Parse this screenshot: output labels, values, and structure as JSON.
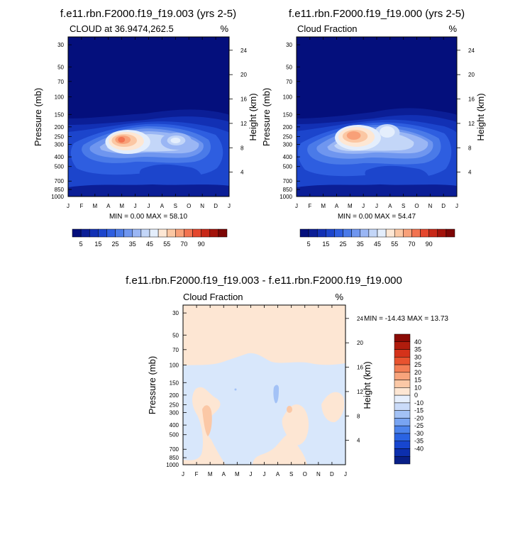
{
  "palettes": {
    "abs": [
      "#040f7c",
      "#0b1e96",
      "#1230b4",
      "#1c45cc",
      "#2e5ee0",
      "#4a7ae8",
      "#6f96ef",
      "#9ab6f4",
      "#c3d6f8",
      "#e4eefc",
      "#fde7d4",
      "#fbc7a3",
      "#f8a078",
      "#f27350",
      "#e4472d",
      "#c72818",
      "#a3130b",
      "#7d0605"
    ],
    "diff": [
      "#081f87",
      "#0c2fae",
      "#1746cf",
      "#2a63e3",
      "#4c83ec",
      "#78a4f2",
      "#a3c2f6",
      "#cadbf9",
      "#e6effd",
      "#fde6d3",
      "#fbc8a6",
      "#f8a47c",
      "#f37e55",
      "#e8532f",
      "#d5321a",
      "#b01c0d",
      "#8a0a05"
    ]
  },
  "charts": [
    {
      "title": "f.e11.rbn.F2000.f19_f19.003 (yrs 2-5)",
      "left_string": "CLOUD at 36.9474,262.5",
      "right_string": "%",
      "ylabel": "Pressure (mb)",
      "ylabel_right": "Height (km)",
      "stats": "MIN =   0.00 MAX =  58.10",
      "chart_data": {
        "type": "contour",
        "x": [
          "J",
          "F",
          "M",
          "A",
          "M",
          "J",
          "J",
          "A",
          "S",
          "O",
          "N",
          "D",
          "J"
        ],
        "y_pressure_ticks": [
          30,
          50,
          70,
          100,
          150,
          200,
          250,
          300,
          400,
          500,
          700,
          850,
          1000
        ],
        "y_height_ticks": [
          4,
          8,
          12,
          16,
          20,
          24
        ],
        "ylim": [
          1000,
          25
        ],
        "zlim": [
          0,
          58.1
        ],
        "peaks": [
          {
            "month": 4.2,
            "pressure": 270,
            "value": 58.1
          },
          {
            "month": 7.6,
            "pressure": 270,
            "value": 40
          }
        ],
        "colorbar_labels": [
          "5",
          "15",
          "25",
          "35",
          "45",
          "55",
          "70",
          "90"
        ]
      }
    },
    {
      "title": "f.e11.rbn.F2000.f19_f19.000 (yrs 2-5)",
      "left_string": "Cloud Fraction",
      "right_string": "%",
      "ylabel": "Pressure (mb)",
      "ylabel_right": "Height (km)",
      "stats": "MIN =   0.00 MAX =  54.47",
      "chart_data": {
        "type": "contour",
        "x": [
          "J",
          "F",
          "M",
          "A",
          "M",
          "J",
          "J",
          "A",
          "S",
          "O",
          "N",
          "D",
          "J"
        ],
        "y_pressure_ticks": [
          30,
          50,
          70,
          100,
          150,
          200,
          250,
          300,
          400,
          500,
          700,
          850,
          1000
        ],
        "y_height_ticks": [
          4,
          8,
          12,
          16,
          20,
          24
        ],
        "ylim": [
          1000,
          25
        ],
        "zlim": [
          0,
          54.47
        ],
        "peaks": [
          {
            "month": 4.4,
            "pressure": 250,
            "value": 54.47
          },
          {
            "month": 7.9,
            "pressure": 220,
            "value": 44
          }
        ],
        "colorbar_labels": [
          "5",
          "15",
          "25",
          "35",
          "45",
          "55",
          "70",
          "90"
        ]
      }
    },
    {
      "title": "f.e11.rbn.F2000.f19_f19.003 - f.e11.rbn.F2000.f19_f19.000",
      "left_string": "Cloud Fraction",
      "right_string": "%",
      "ylabel": "Pressure (mb)",
      "ylabel_right": "Height (km)",
      "stats": "MIN = -14.43 MAX =  13.73",
      "chart_data": {
        "type": "contour",
        "x": [
          "J",
          "F",
          "M",
          "A",
          "M",
          "J",
          "J",
          "A",
          "S",
          "O",
          "N",
          "D",
          "J"
        ],
        "y_pressure_ticks": [
          30,
          50,
          70,
          100,
          150,
          200,
          250,
          300,
          400,
          500,
          700,
          850,
          1000
        ],
        "y_height_ticks": [
          4,
          8,
          12,
          16,
          20,
          24
        ],
        "ylim": [
          1000,
          25
        ],
        "zlim": [
          -14.43,
          13.73
        ],
        "colorbar_labels": [
          "40",
          "35",
          "30",
          "25",
          "20",
          "15",
          "10",
          "0",
          "-10",
          "-15",
          "-20",
          "-25",
          "-30",
          "-35",
          "-40"
        ]
      }
    }
  ]
}
